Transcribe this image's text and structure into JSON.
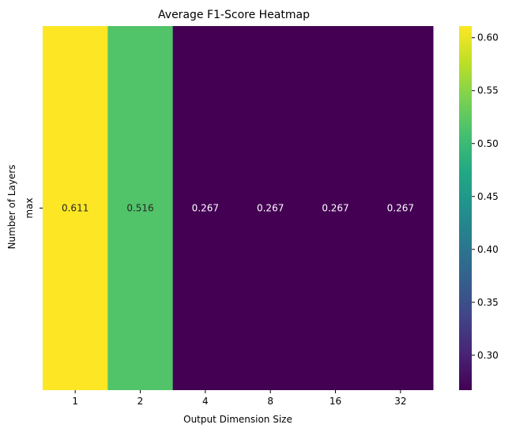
{
  "chart_data": {
    "type": "heatmap",
    "title": "Average F1-Score Heatmap",
    "xlabel": "Output Dimension Size",
    "ylabel": "Number of Layers",
    "x_categories": [
      "1",
      "2",
      "4",
      "8",
      "16",
      "32"
    ],
    "y_categories": [
      "max"
    ],
    "values": [
      [
        0.611,
        0.516,
        0.267,
        0.267,
        0.267,
        0.267
      ]
    ],
    "value_labels": [
      "0.611",
      "0.516",
      "0.267",
      "0.267",
      "0.267",
      "0.267"
    ],
    "colormap": "viridis",
    "colorbar": {
      "range": [
        0.267,
        0.611
      ],
      "ticks": [
        0.3,
        0.35,
        0.4,
        0.45,
        0.5,
        0.55,
        0.6
      ],
      "tick_labels": [
        "0.30",
        "0.35",
        "0.40",
        "0.45",
        "0.50",
        "0.55",
        "0.60"
      ]
    },
    "grid": false
  }
}
